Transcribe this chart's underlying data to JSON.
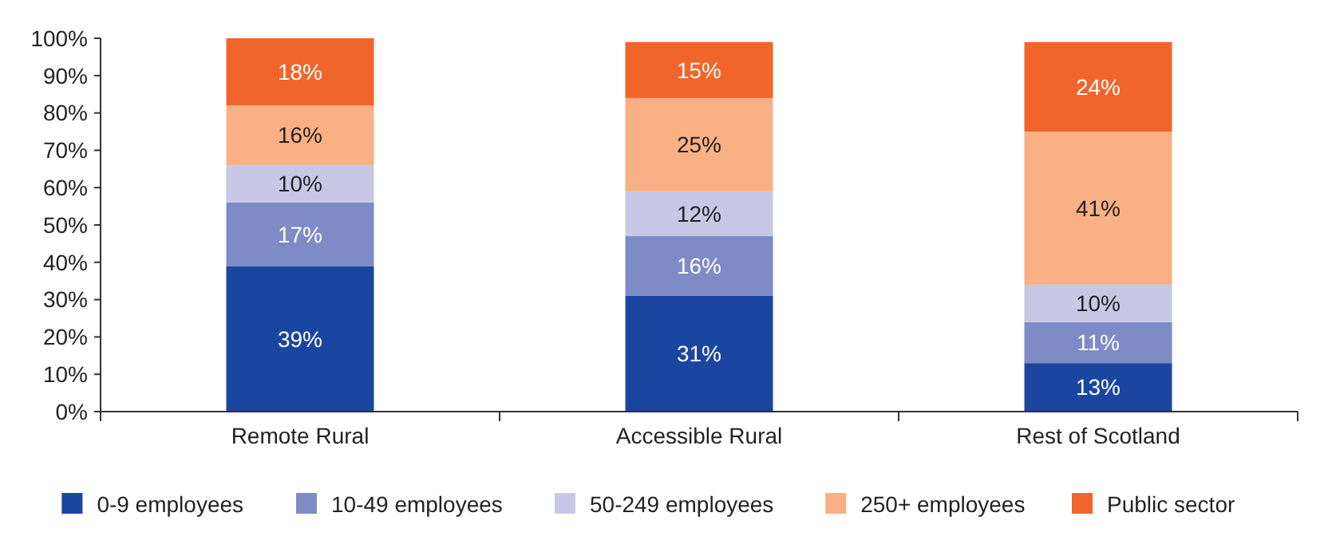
{
  "chart_data": {
    "type": "bar",
    "stacked": true,
    "categories": [
      "Remote Rural",
      "Accessible Rural",
      "Rest of Scotland"
    ],
    "series": [
      {
        "name": "0-9 employees",
        "color": "#1b46a0",
        "values": [
          39,
          31,
          13
        ],
        "value_labels": [
          "39%",
          "31%",
          "13%"
        ]
      },
      {
        "name": "10-49 employees",
        "color": "#7e8bc7",
        "values": [
          17,
          16,
          11
        ],
        "value_labels": [
          "17%",
          "16%",
          "11%"
        ]
      },
      {
        "name": "50-249 employees",
        "color": "#c6c8e6",
        "values": [
          10,
          12,
          10
        ],
        "value_labels": [
          "10%",
          "12%",
          "10%"
        ]
      },
      {
        "name": "250+ employees",
        "color": "#f8b084",
        "values": [
          16,
          25,
          41
        ],
        "value_labels": [
          "16%",
          "25%",
          "41%"
        ]
      },
      {
        "name": "Public sector",
        "color": "#f1652a",
        "values": [
          18,
          15,
          24
        ],
        "value_labels": [
          "18%",
          "15%",
          "24%"
        ]
      }
    ],
    "ylim": [
      0,
      100
    ],
    "yticks": [
      {
        "value": 0,
        "label": "0%"
      },
      {
        "value": 10,
        "label": "10%"
      },
      {
        "value": 20,
        "label": "20%"
      },
      {
        "value": 30,
        "label": "30%"
      },
      {
        "value": 40,
        "label": "40%"
      },
      {
        "value": 50,
        "label": "50%"
      },
      {
        "value": 60,
        "label": "60%"
      },
      {
        "value": 70,
        "label": "70%"
      },
      {
        "value": 80,
        "label": "80%"
      },
      {
        "value": 90,
        "label": "90%"
      },
      {
        "value": 100,
        "label": "100%"
      }
    ],
    "legend": "bottom",
    "grid": false
  }
}
